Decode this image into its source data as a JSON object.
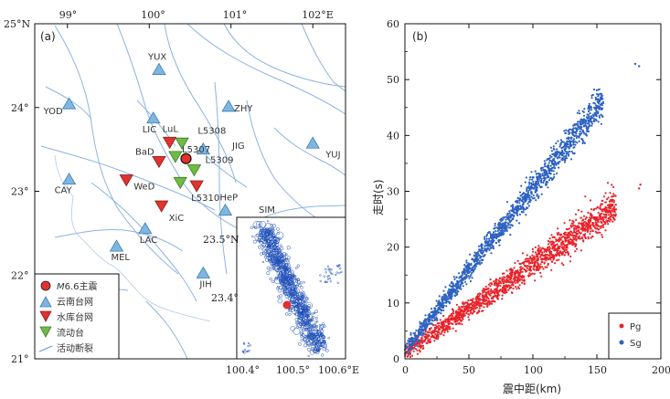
{
  "chart_data": [
    {
      "type": "map",
      "panel_label": "(a)",
      "lon_ticks": [
        "99°",
        "100°",
        "101°",
        "102°E"
      ],
      "lat_ticks": [
        "25°N",
        "24°",
        "23°",
        "22°",
        "21°"
      ],
      "xlim": [
        98.6,
        102.4
      ],
      "ylim": [
        21.0,
        25.0
      ],
      "stations": [
        {
          "name": "YUX",
          "lon": 100.12,
          "lat": 24.46,
          "kind": "yunnan"
        },
        {
          "name": "YOD",
          "lon": 99.02,
          "lat": 24.05,
          "kind": "yunnan"
        },
        {
          "name": "LIC",
          "lon": 100.05,
          "lat": 23.88,
          "kind": "yunnan"
        },
        {
          "name": "ZHY",
          "lon": 100.97,
          "lat": 24.02,
          "kind": "yunnan"
        },
        {
          "name": "L5308",
          "lon": 100.66,
          "lat": 23.51,
          "kind": "yunnan"
        },
        {
          "name": "YUJ",
          "lon": 102.0,
          "lat": 23.58,
          "kind": "yunnan"
        },
        {
          "name": "CAY",
          "lon": 99.02,
          "lat": 23.15,
          "kind": "yunnan"
        },
        {
          "name": "LAC",
          "lon": 99.95,
          "lat": 22.56,
          "kind": "yunnan"
        },
        {
          "name": "MEL",
          "lon": 99.6,
          "lat": 22.35,
          "kind": "yunnan"
        },
        {
          "name": "HeP",
          "lon": 100.93,
          "lat": 22.78,
          "kind": "yunnan"
        },
        {
          "name": "JIH",
          "lon": 100.66,
          "lat": 22.03,
          "kind": "yunnan"
        },
        {
          "name": "BaD",
          "lon": 100.12,
          "lat": 23.35,
          "kind": "reservoir"
        },
        {
          "name": "LuL",
          "lon": 100.25,
          "lat": 23.58,
          "kind": "reservoir"
        },
        {
          "name": "WeD",
          "lon": 99.72,
          "lat": 23.13,
          "kind": "reservoir"
        },
        {
          "name": "XiC",
          "lon": 100.15,
          "lat": 22.82,
          "kind": "reservoir"
        },
        {
          "name": "L5310",
          "lon": 100.58,
          "lat": 23.06,
          "kind": "reservoir"
        },
        {
          "name": "L5309",
          "lon": 100.55,
          "lat": 23.25,
          "kind": "mobile"
        },
        {
          "name": "L5307",
          "lon": 100.4,
          "lat": 23.57,
          "kind": "mobile"
        },
        {
          "name": "",
          "lon": 100.32,
          "lat": 23.41,
          "kind": "mobile"
        },
        {
          "name": "",
          "lon": 100.38,
          "lat": 23.1,
          "kind": "mobile"
        }
      ],
      "mainshock": {
        "lon": 100.45,
        "lat": 23.39
      },
      "jig_label": "JIG",
      "sim_label": "SIM",
      "legend": [
        {
          "key": "mainshock",
          "text": "M6.6主震",
          "italic_prefix": "M",
          "rest": "6.6主震",
          "color": "#e0322e"
        },
        {
          "key": "yunnan",
          "text": "云南台网",
          "color": "#7fb6df"
        },
        {
          "key": "reservoir",
          "text": "水库台网",
          "color": "#e0322e"
        },
        {
          "key": "mobile",
          "text": "流动台",
          "color": "#6fbb45"
        },
        {
          "key": "fault",
          "text": "活动断裂",
          "color": "#7fa8d8"
        }
      ],
      "inset": {
        "lat_ticks": [
          "23.5°N",
          "23.4°"
        ],
        "lon_ticks": [
          "100.4°",
          "100.5°",
          "100.6°E"
        ],
        "event_color": "#1e4fb8",
        "mainshock_color": "#e0322e"
      }
    },
    {
      "type": "scatter",
      "panel_label": "(b)",
      "xlabel": "震中距(km)",
      "ylabel": "走时(s)",
      "xlim": [
        0,
        200
      ],
      "ylim": [
        0,
        60
      ],
      "x_ticks": [
        0,
        50,
        100,
        150,
        200
      ],
      "y_ticks": [
        0,
        10,
        20,
        30,
        40,
        50,
        60
      ],
      "legend_position": "bottom-right",
      "series": [
        {
          "name": "Pg",
          "color": "#e8232a",
          "slope": 0.16,
          "intercept": 1.0,
          "xmax": 165,
          "outliers": [
            [
              183,
              30.5
            ],
            [
              184,
              31.2
            ]
          ]
        },
        {
          "name": "Sg",
          "color": "#2e62c1",
          "slope": 0.288,
          "intercept": 1.6,
          "xmax": 155,
          "outliers": [
            [
              180,
              52.8
            ],
            [
              183,
              52.4
            ]
          ]
        }
      ]
    }
  ]
}
